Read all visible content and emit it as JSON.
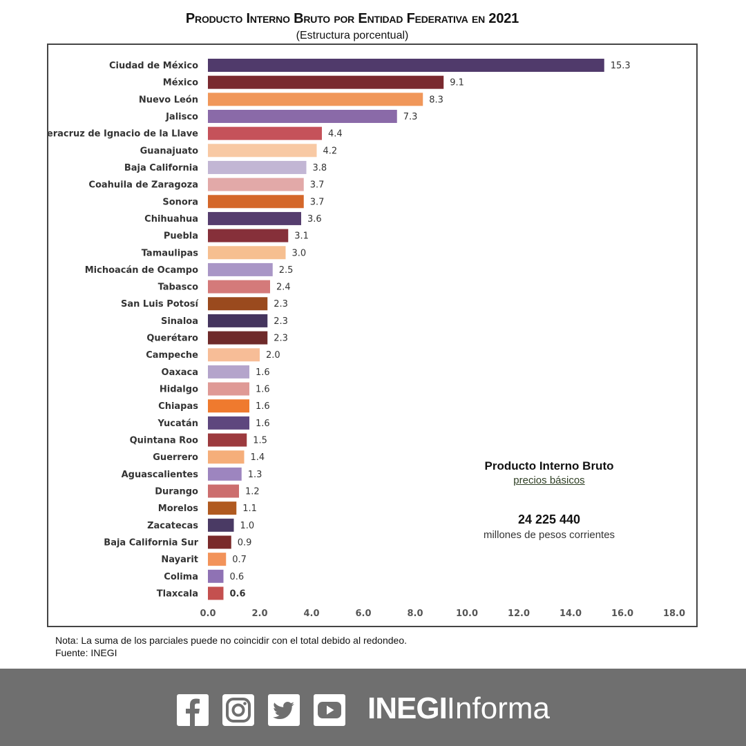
{
  "header": {
    "title": "Producto Interno Bruto por Entidad Federativa en 2021",
    "subtitle": "(Estructura porcentual)"
  },
  "chart_data": {
    "type": "bar",
    "orientation": "horizontal",
    "title": "Producto Interno Bruto por Entidad Federativa en 2021",
    "subtitle": "(Estructura porcentual)",
    "xlabel": "",
    "ylabel": "",
    "xlim": [
      0,
      18
    ],
    "x_ticks": [
      "0.0",
      "2.0",
      "4.0",
      "6.0",
      "8.0",
      "10.0",
      "12.0",
      "14.0",
      "16.0",
      "18.0"
    ],
    "grid": false,
    "categories": [
      "Ciudad de México",
      "México",
      "Nuevo León",
      "Jalisco",
      "Veracruz de Ignacio de la Llave",
      "Guanajuato",
      "Baja California",
      "Coahuila de Zaragoza",
      "Sonora",
      "Chihuahua",
      "Puebla",
      "Tamaulipas",
      "Michoacán de Ocampo",
      "Tabasco",
      "San Luis Potosí",
      "Sinaloa",
      "Querétaro",
      "Campeche",
      "Oaxaca",
      "Hidalgo",
      "Chiapas",
      "Yucatán",
      "Quintana Roo",
      "Guerrero",
      "Aguascalientes",
      "Durango",
      "Morelos",
      "Zacatecas",
      "Baja California Sur",
      "Nayarit",
      "Colima",
      "Tlaxcala"
    ],
    "values": [
      15.3,
      9.1,
      8.3,
      7.3,
      4.4,
      4.2,
      3.8,
      3.7,
      3.7,
      3.6,
      3.1,
      3.0,
      2.5,
      2.4,
      2.3,
      2.3,
      2.3,
      2.0,
      1.6,
      1.6,
      1.6,
      1.6,
      1.5,
      1.4,
      1.3,
      1.2,
      1.1,
      1.0,
      0.9,
      0.7,
      0.6,
      0.6
    ],
    "value_labels": [
      "15.3",
      "9.1",
      "8.3",
      "7.3",
      "4.4",
      "4.2",
      "3.8",
      "3.7",
      "3.7",
      "3.6",
      "3.1",
      "3.0",
      "2.5",
      "2.4",
      "2.3",
      "2.3",
      "2.3",
      "2.0",
      "1.6",
      "1.6",
      "1.6",
      "1.6",
      "1.5",
      "1.4",
      "1.3",
      "1.2",
      "1.1",
      "1.0",
      "0.9",
      "0.7",
      "0.6",
      "0.6"
    ],
    "colors": [
      "#503a6b",
      "#7a2a2f",
      "#f0975a",
      "#8a6aa8",
      "#c5525a",
      "#f8c9a4",
      "#c2b6d4",
      "#e2a9a8",
      "#d4672a",
      "#553d6e",
      "#86303a",
      "#f6bf90",
      "#a996c6",
      "#d47a7a",
      "#9a4a1e",
      "#45355e",
      "#6e2a2a",
      "#f7bd97",
      "#b4a4cb",
      "#df9a96",
      "#ef7a2e",
      "#5e477e",
      "#9c3a3e",
      "#f5ae7a",
      "#9d85bf",
      "#cc6e6e",
      "#b05a20",
      "#4a3a64",
      "#7a2a2a",
      "#f2935a",
      "#8f72b4",
      "#c4504f"
    ]
  },
  "info_box": {
    "title": "Producto Interno Bruto",
    "subtitle": "precios básicos",
    "total": "24 225 440",
    "units": "millones de pesos corrientes"
  },
  "notes": {
    "nota": "Nota: La suma de los parciales puede no coincidir con el total debido al redondeo.",
    "fuente": "Fuente: INEGI"
  },
  "footer": {
    "brand_bold": "INEGI",
    "brand_light": "Informa",
    "social_icons": [
      "facebook-icon",
      "instagram-icon",
      "twitter-icon",
      "youtube-icon"
    ]
  }
}
